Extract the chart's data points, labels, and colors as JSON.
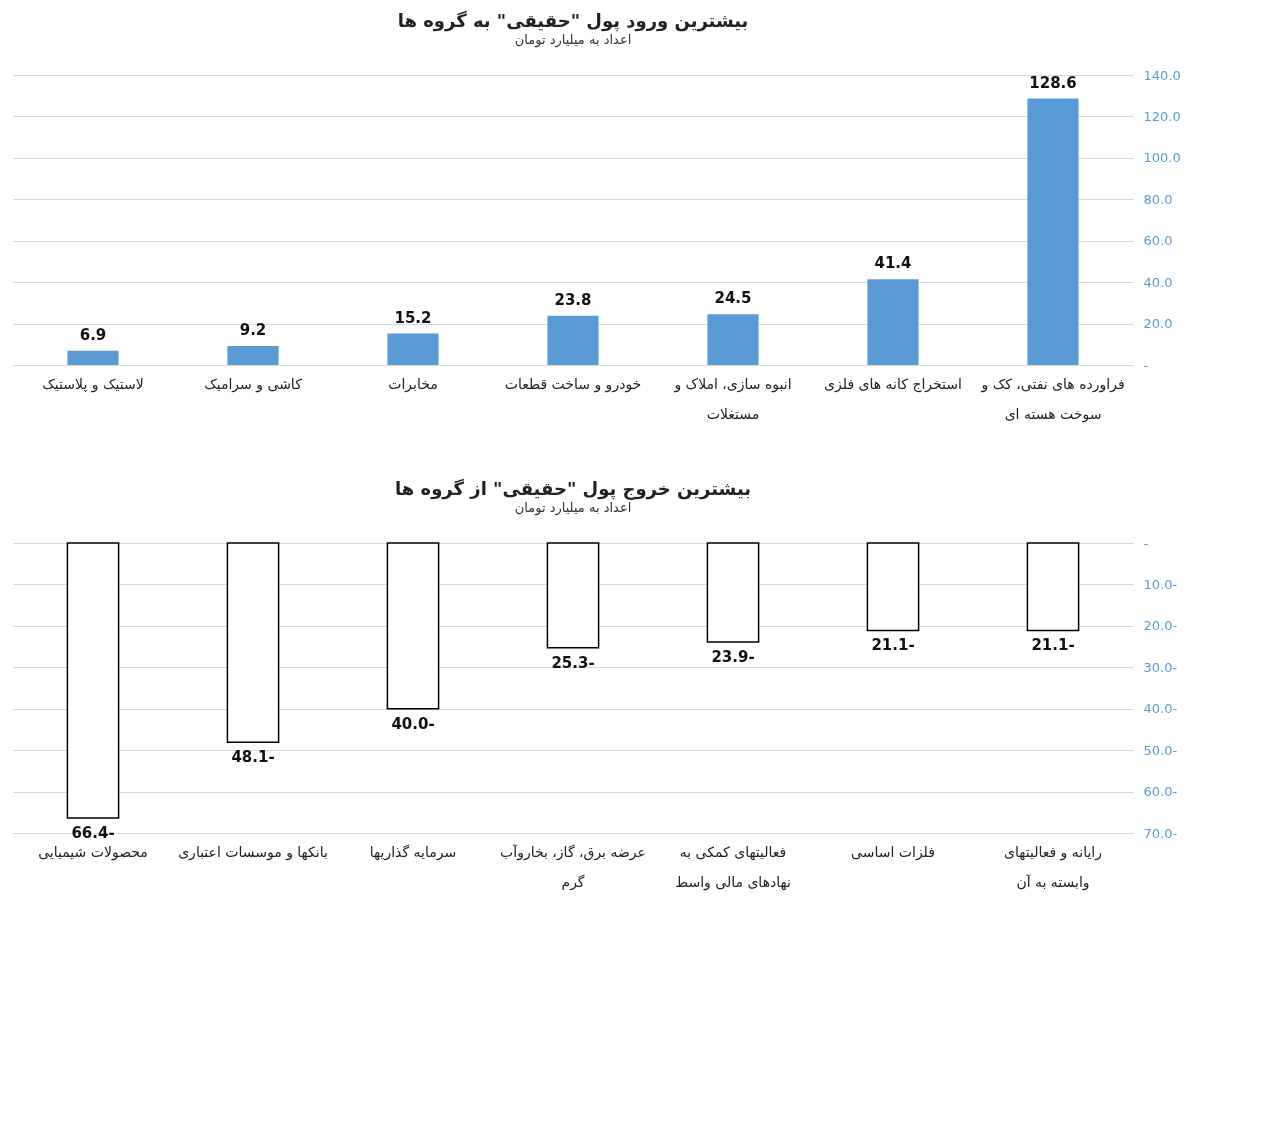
{
  "chart_data": [
    {
      "type": "bar",
      "title": "بیشترین ورود  پول \"حقیقی\"  به گروه ها",
      "subtitle": "اعداد به میلیارد تومان",
      "categories": [
        "لاستیک و پلاستیک",
        "کاشی و سرامیک",
        "مخابرات",
        "خودرو و ساخت قطعات",
        "انبوه سازی، املاک و مستغلات",
        "استخراج کانه های فلزی",
        "فراورده های نفتی، کک و سوخت هسته ای"
      ],
      "values": [
        6.9,
        9.2,
        15.2,
        23.8,
        24.5,
        41.4,
        128.6
      ],
      "color": "#5b9bd5",
      "ylim": [
        0,
        140
      ],
      "yticks": [
        {
          "value": 0,
          "label": "-"
        },
        {
          "value": 20,
          "label": "20.0"
        },
        {
          "value": 40,
          "label": "40.0"
        },
        {
          "value": 60,
          "label": "60.0"
        },
        {
          "value": 80,
          "label": "80.0"
        },
        {
          "value": 100,
          "label": "100.0"
        },
        {
          "value": 120,
          "label": "120.0"
        },
        {
          "value": 140,
          "label": "140.0"
        }
      ],
      "grid": true,
      "data_labels": true
    },
    {
      "type": "bar",
      "title": "بیشترین خروج  پول \"حقیقی\" از گروه ها",
      "subtitle": "اعداد به میلیارد تومان",
      "categories": [
        "محصولات شیمیایی",
        "بانکها و موسسات اعتباری",
        "سرمایه گذاریها",
        "عرضه برق، گاز، بخاروآب گرم",
        "فعالیتهای کمکی به نهادهای مالی واسط",
        "فلزات اساسی",
        "رایانه و فعالیتهای وابسته به آن"
      ],
      "values": [
        -66.4,
        -48.1,
        -40.0,
        -25.3,
        -23.9,
        -21.1,
        -21.1
      ],
      "color": "#ffffff",
      "value_labels": [
        "-66.4",
        "-48.1",
        "-40.0",
        "-25.3",
        "-23.9",
        "-21.1",
        "-21.1"
      ],
      "ylim": [
        -70,
        0
      ],
      "yticks": [
        {
          "value": 0,
          "label": "-"
        },
        {
          "value": -10,
          "label": "10.0-"
        },
        {
          "value": -20,
          "label": "20.0-"
        },
        {
          "value": -30,
          "label": "30.0-"
        },
        {
          "value": -40,
          "label": "40.0-"
        },
        {
          "value": -50,
          "label": "50.0-"
        },
        {
          "value": -60,
          "label": "60.0-"
        },
        {
          "value": -70,
          "label": "70.0-"
        }
      ],
      "grid": true
    }
  ]
}
